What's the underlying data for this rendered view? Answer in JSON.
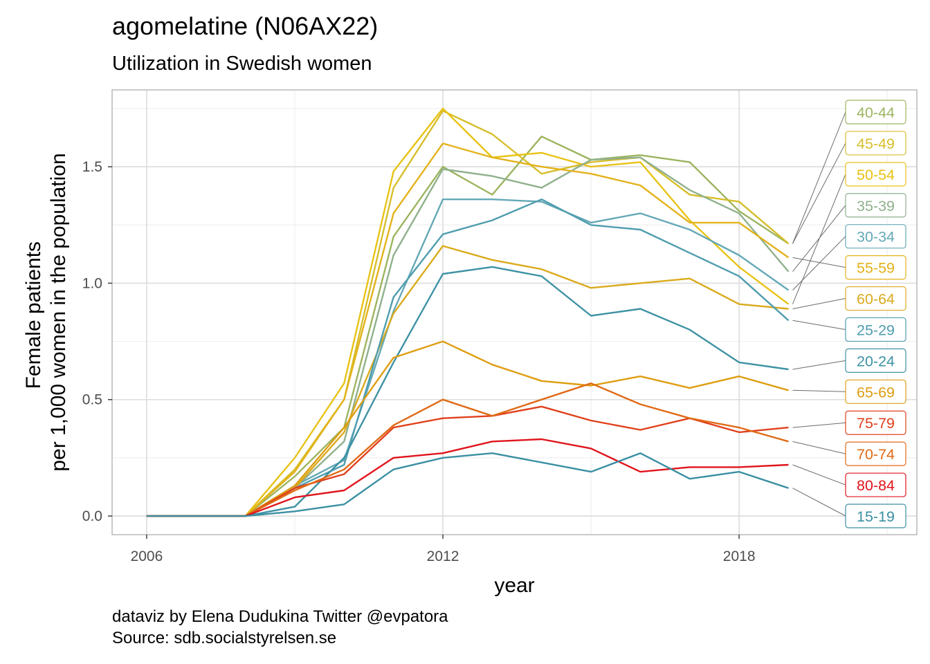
{
  "title": "agomelatine (N06AX22)",
  "subtitle": "Utilization in Swedish women",
  "caption": {
    "line1": "dataviz by Elena Dudukina Twitter @evpatora",
    "line2": "Source: sdb.socialstyrelsen.se"
  },
  "chart_data": {
    "type": "line",
    "xlabel": "year",
    "ylabel": [
      "Female patients",
      "per 1,000 women in the population"
    ],
    "xlim": [
      2005.3,
      2021.6
    ],
    "ylim": [
      -0.08,
      1.83
    ],
    "x_ticks": [
      2006,
      2012,
      2018
    ],
    "y_ticks": [
      0.0,
      0.5,
      1.0,
      1.5
    ],
    "y_tick_labels": [
      "0.0",
      "0.5",
      "1.0",
      "1.5"
    ],
    "grid": true,
    "legend": "direct labels at right",
    "x": [
      2006,
      2007,
      2008,
      2009,
      2010,
      2011,
      2012,
      2013,
      2014,
      2015,
      2016,
      2017,
      2018,
      2019
    ],
    "series": [
      {
        "name": "40-44",
        "color": "#9CB45F",
        "values": [
          0,
          0,
          0,
          0.17,
          0.38,
          1.2,
          1.5,
          1.38,
          1.63,
          1.53,
          1.55,
          1.52,
          1.31,
          1.17
        ]
      },
      {
        "name": "45-49",
        "color": "#D6BE2A",
        "values": [
          0,
          0,
          0,
          0.2,
          0.5,
          1.41,
          1.74,
          1.64,
          1.47,
          1.52,
          1.54,
          1.38,
          1.35,
          1.17
        ]
      },
      {
        "name": "50-54",
        "color": "#E8C214",
        "values": [
          0,
          0,
          0,
          0.25,
          0.57,
          1.48,
          1.75,
          1.54,
          1.56,
          1.5,
          1.52,
          1.27,
          1.07,
          0.91
        ]
      },
      {
        "name": "35-39",
        "color": "#8FB08C",
        "values": [
          0,
          0,
          0,
          0.12,
          0.32,
          1.12,
          1.49,
          1.46,
          1.41,
          1.53,
          1.54,
          1.4,
          1.3,
          1.05
        ]
      },
      {
        "name": "30-34",
        "color": "#64A8B6",
        "values": [
          0,
          0,
          0,
          0.13,
          0.24,
          0.88,
          1.36,
          1.36,
          1.35,
          1.26,
          1.3,
          1.23,
          1.12,
          0.97
        ]
      },
      {
        "name": "55-59",
        "color": "#E3B21A",
        "values": [
          0,
          0,
          0,
          0.19,
          0.5,
          1.3,
          1.6,
          1.54,
          1.5,
          1.47,
          1.42,
          1.26,
          1.26,
          1.11
        ]
      },
      {
        "name": "60-64",
        "color": "#DAAA1C",
        "values": [
          0,
          0,
          0,
          0.12,
          0.36,
          0.87,
          1.16,
          1.1,
          1.06,
          0.98,
          1.0,
          1.02,
          0.91,
          0.89
        ]
      },
      {
        "name": "25-29",
        "color": "#4F9DAE",
        "values": [
          0,
          0,
          0,
          0.12,
          0.22,
          0.94,
          1.21,
          1.27,
          1.36,
          1.25,
          1.23,
          1.13,
          1.03,
          0.84
        ]
      },
      {
        "name": "20-24",
        "color": "#3E92A4",
        "values": [
          0,
          0,
          0,
          0.04,
          0.25,
          0.66,
          1.04,
          1.07,
          1.03,
          0.86,
          0.89,
          0.8,
          0.66,
          0.63
        ]
      },
      {
        "name": "65-69",
        "color": "#DE9D10",
        "values": [
          0,
          0,
          0,
          0.13,
          0.38,
          0.68,
          0.75,
          0.65,
          0.58,
          0.56,
          0.6,
          0.55,
          0.6,
          0.54
        ]
      },
      {
        "name": "75-79",
        "color": "#E0401C",
        "values": [
          0,
          0,
          0,
          0.12,
          0.18,
          0.38,
          0.42,
          0.43,
          0.47,
          0.41,
          0.37,
          0.42,
          0.36,
          0.38
        ]
      },
      {
        "name": "70-74",
        "color": "#E06A16",
        "values": [
          0,
          0,
          0,
          0.11,
          0.2,
          0.39,
          0.5,
          0.43,
          0.5,
          0.57,
          0.48,
          0.42,
          0.38,
          0.32
        ]
      },
      {
        "name": "80-84",
        "color": "#E0141C",
        "values": [
          0,
          0,
          0,
          0.08,
          0.11,
          0.25,
          0.27,
          0.32,
          0.33,
          0.29,
          0.19,
          0.21,
          0.21,
          0.22
        ]
      },
      {
        "name": "15-19",
        "color": "#3A8FA2",
        "values": [
          0,
          0,
          0,
          0.02,
          0.05,
          0.2,
          0.25,
          0.27,
          0.23,
          0.19,
          0.27,
          0.16,
          0.19,
          0.12
        ]
      }
    ]
  }
}
